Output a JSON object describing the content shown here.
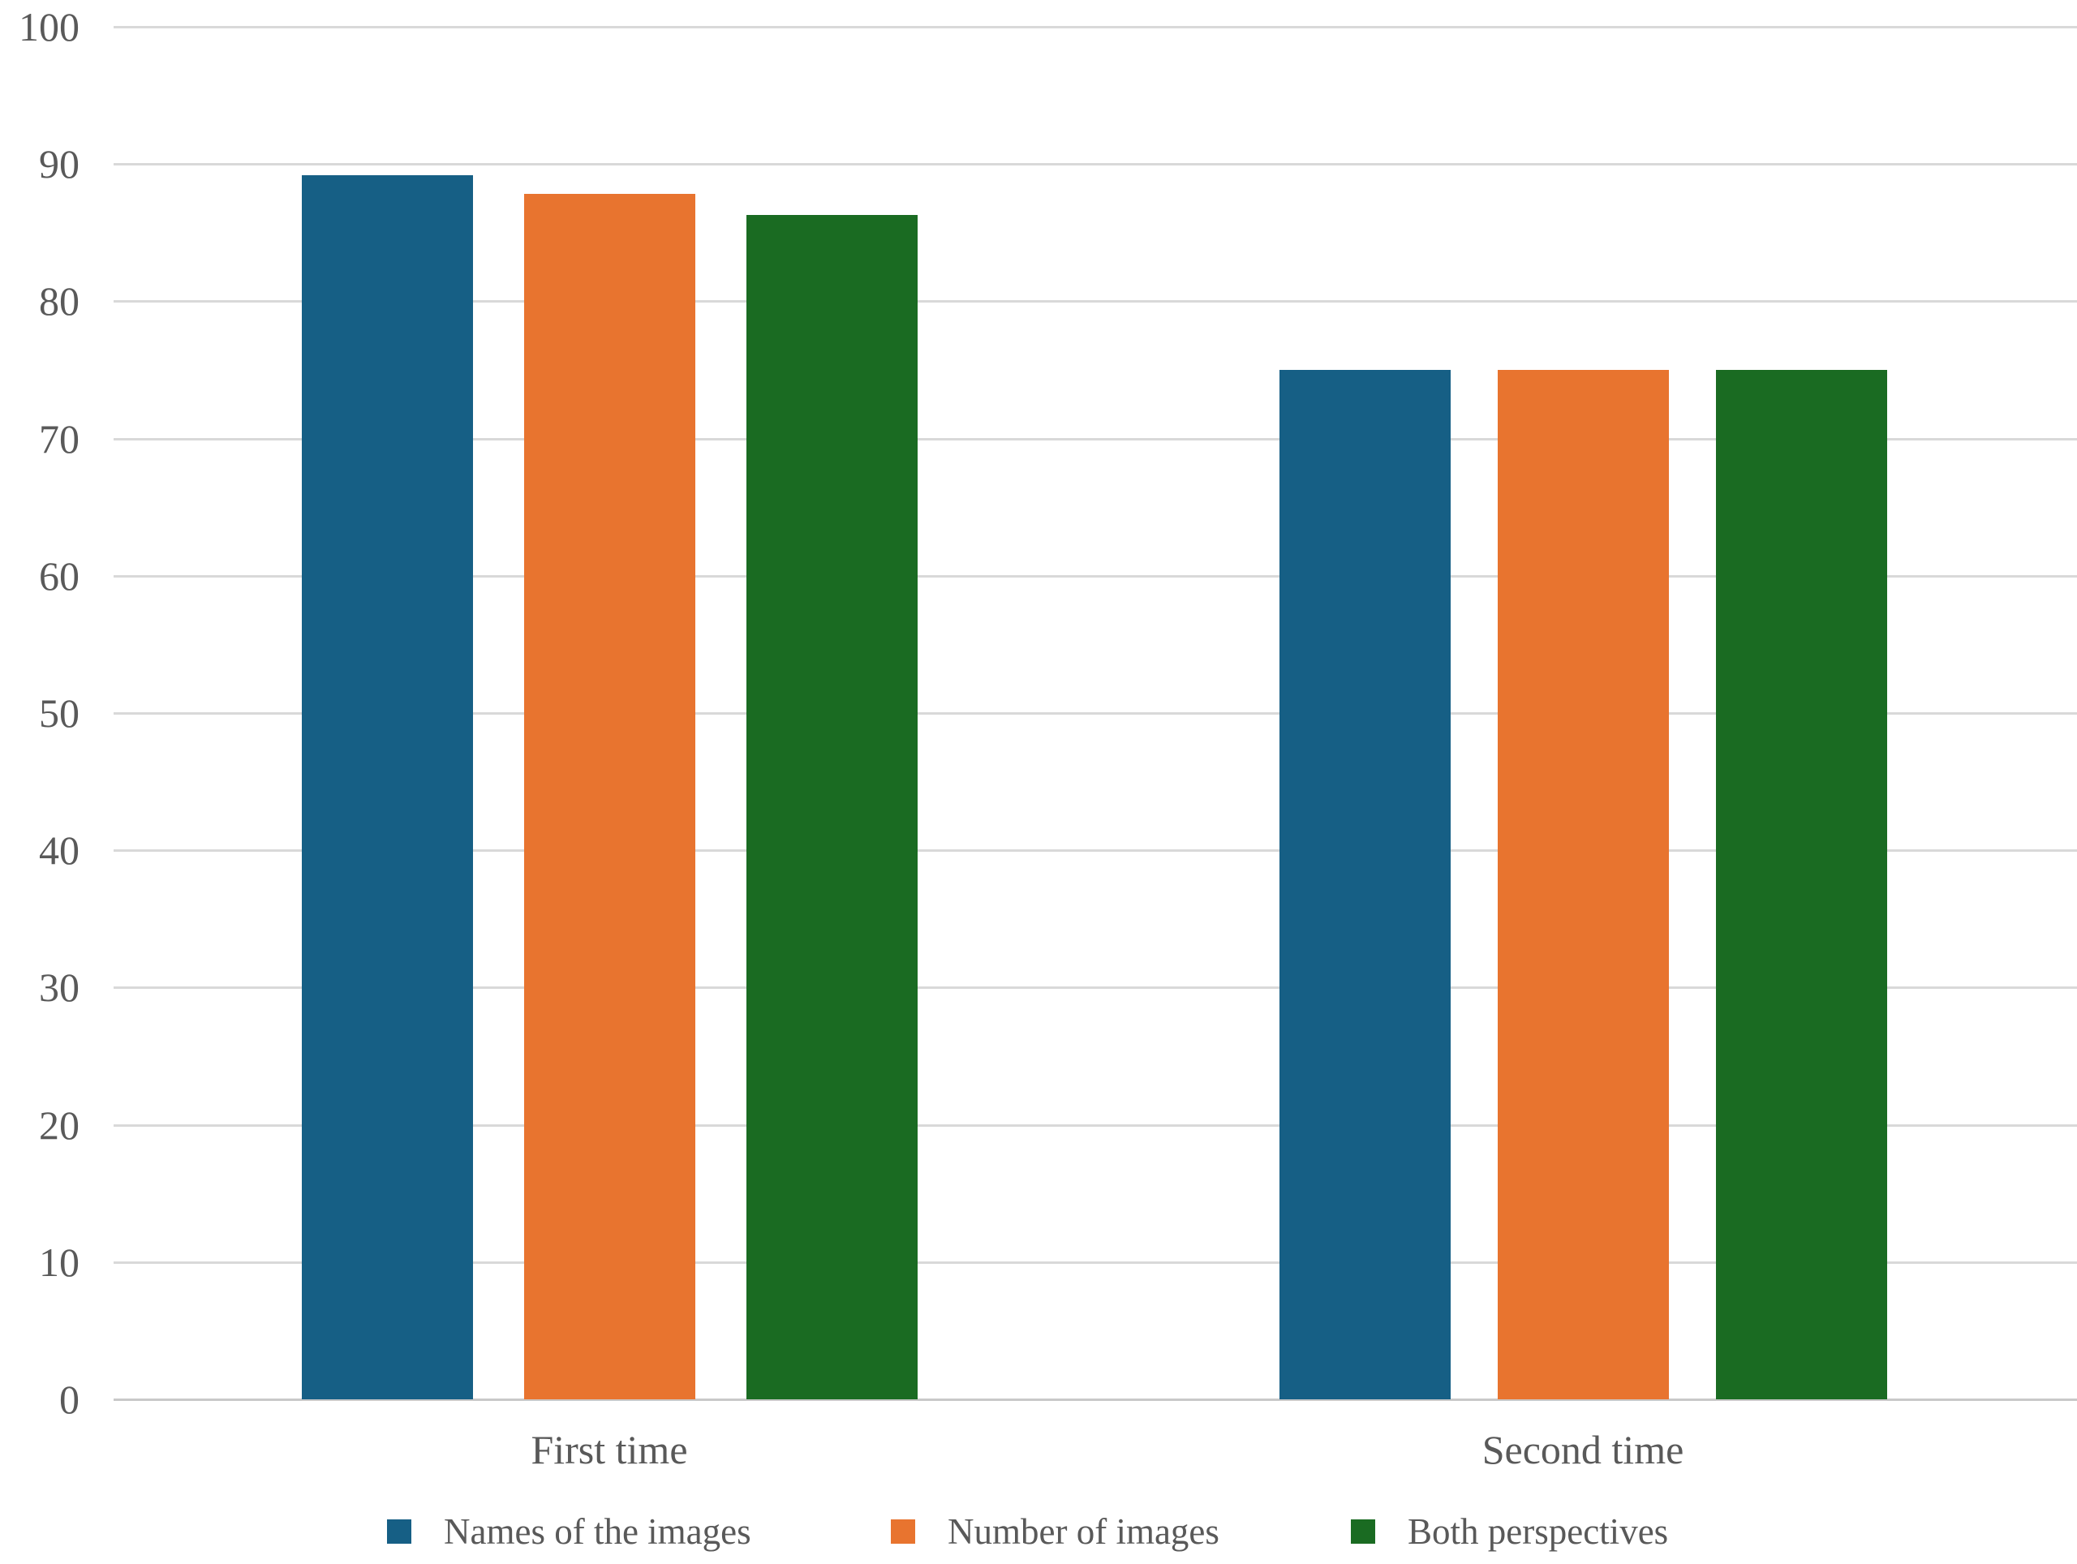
{
  "chart_data": {
    "type": "bar",
    "title": "",
    "xlabel": "",
    "ylabel": "",
    "categories": [
      "First time",
      "Second time"
    ],
    "series": [
      {
        "name": "Names of the images",
        "color": "#165f85",
        "values": [
          89.2,
          75
        ]
      },
      {
        "name": "Number of images",
        "color": "#e8742f",
        "values": [
          87.8,
          75
        ]
      },
      {
        "name": "Both perspectives",
        "color": "#1a6b22",
        "values": [
          86.3,
          75
        ]
      }
    ],
    "ylim": [
      0,
      100
    ],
    "yticks": [
      0,
      10,
      20,
      30,
      40,
      50,
      60,
      70,
      80,
      90,
      100
    ],
    "grid": true,
    "legend_position": "bottom",
    "colors": {
      "gridline": "#d9d9d9",
      "axis_text": "#595959",
      "background": "#ffffff"
    }
  }
}
